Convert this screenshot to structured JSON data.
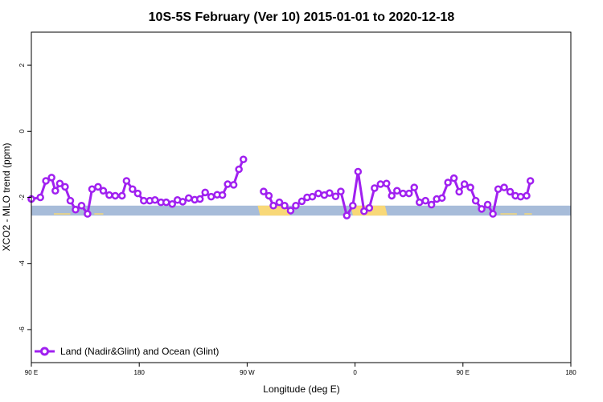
{
  "chart_data": {
    "type": "line",
    "title": "10S-5S February (Ver 10)   2015-01-01 to 2020-12-18",
    "xlabel": "Longitude (deg E)",
    "ylabel": "XCO2 - MLO trend (ppm)",
    "xlim": [
      90,
      450
    ],
    "ylim": [
      -7,
      3
    ],
    "x_ticks": [
      {
        "value": 90,
        "label": "90 E"
      },
      {
        "value": 162,
        "label": "180"
      },
      {
        "value": 234,
        "label": "90 W"
      },
      {
        "value": 306,
        "label": "0"
      },
      {
        "value": 378,
        "label": "90 E"
      },
      {
        "value": 450,
        "label": "180"
      }
    ],
    "y_ticks": [
      {
        "value": -6,
        "label": "-6"
      },
      {
        "value": -4,
        "label": "-4"
      },
      {
        "value": -2,
        "label": "-2"
      },
      {
        "value": 0,
        "label": "0"
      },
      {
        "value": 2,
        "label": "2"
      }
    ],
    "legend": {
      "position": "bottom-left"
    },
    "series": [
      {
        "name": "Land (Nadir&Glint) and Ocean (Glint)",
        "color": "#a020f0",
        "segments": [
          [
            [
              90,
              -2.05
            ],
            [
              96,
              -2.0
            ],
            [
              99.7,
              -1.5
            ],
            [
              103.5,
              -1.4
            ],
            [
              106,
              -1.8
            ],
            [
              109,
              -1.58
            ],
            [
              112.5,
              -1.68
            ],
            [
              116,
              -2.1
            ],
            [
              119.5,
              -2.37
            ],
            [
              123.5,
              -2.25
            ],
            [
              127.5,
              -2.5
            ],
            [
              130.5,
              -1.75
            ],
            [
              134.5,
              -1.68
            ],
            [
              138,
              -1.8
            ],
            [
              142,
              -1.93
            ],
            [
              146,
              -1.95
            ],
            [
              150.5,
              -1.95
            ],
            [
              153.5,
              -1.5
            ],
            [
              157.5,
              -1.75
            ],
            [
              161,
              -1.88
            ],
            [
              165,
              -2.1
            ],
            [
              169,
              -2.1
            ],
            [
              172.5,
              -2.08
            ],
            [
              176.5,
              -2.15
            ],
            [
              180,
              -2.15
            ],
            [
              184,
              -2.2
            ],
            [
              187.5,
              -2.08
            ],
            [
              191,
              -2.13
            ],
            [
              195,
              -2.02
            ],
            [
              199,
              -2.07
            ],
            [
              202.5,
              -2.05
            ],
            [
              206,
              -1.85
            ],
            [
              210,
              -1.98
            ],
            [
              214,
              -1.92
            ],
            [
              217.5,
              -1.93
            ],
            [
              221,
              -1.6
            ],
            [
              225,
              -1.62
            ],
            [
              228.5,
              -1.15
            ],
            [
              231.5,
              -0.85
            ]
          ],
          [
            [
              245,
              -1.82
            ],
            [
              248.5,
              -1.95
            ],
            [
              251.5,
              -2.25
            ],
            [
              255.5,
              -2.15
            ],
            [
              259,
              -2.25
            ],
            [
              263,
              -2.4
            ],
            [
              266.5,
              -2.25
            ],
            [
              270.5,
              -2.12
            ],
            [
              274,
              -2.0
            ],
            [
              277.5,
              -1.98
            ],
            [
              281.5,
              -1.88
            ],
            [
              285.5,
              -1.93
            ],
            [
              289,
              -1.87
            ],
            [
              293,
              -1.97
            ],
            [
              296.5,
              -1.82
            ],
            [
              300.5,
              -2.55
            ],
            [
              304.5,
              -2.25
            ],
            [
              308,
              -1.22
            ],
            [
              312,
              -2.42
            ],
            [
              315.5,
              -2.32
            ],
            [
              319,
              -1.72
            ],
            [
              323,
              -1.6
            ],
            [
              327,
              -1.58
            ],
            [
              330.5,
              -1.95
            ],
            [
              334,
              -1.8
            ],
            [
              338,
              -1.88
            ],
            [
              342,
              -1.88
            ],
            [
              345.5,
              -1.7
            ],
            [
              349,
              -2.15
            ],
            [
              353,
              -2.1
            ],
            [
              357,
              -2.22
            ],
            [
              360.5,
              -2.05
            ],
            [
              364,
              -2.02
            ],
            [
              368,
              -1.55
            ],
            [
              372,
              -1.42
            ],
            [
              375.5,
              -1.83
            ],
            [
              379,
              -1.6
            ],
            [
              383,
              -1.7
            ],
            [
              386.5,
              -2.1
            ],
            [
              390.5,
              -2.35
            ],
            [
              394.5,
              -2.22
            ],
            [
              398,
              -2.5
            ],
            [
              401.5,
              -1.75
            ],
            [
              405.5,
              -1.7
            ],
            [
              409.5,
              -1.83
            ],
            [
              413,
              -1.95
            ],
            [
              416.5,
              -1.98
            ],
            [
              420.5,
              -1.95
            ],
            [
              423,
              -1.5
            ]
          ]
        ]
      }
    ],
    "surface_band": {
      "y_range": [
        -2.55,
        -2.25
      ],
      "ocean_color": "#a7bcd9",
      "land_color": "#f8d878",
      "land_ranges": [
        [
          241,
          261
        ],
        [
          303,
          326
        ]
      ],
      "coast_color": "#f8d878",
      "coast_ranges": [
        [
          105,
          116
        ],
        [
          132,
          138
        ],
        [
          403,
          414
        ],
        [
          419,
          424
        ]
      ]
    }
  }
}
